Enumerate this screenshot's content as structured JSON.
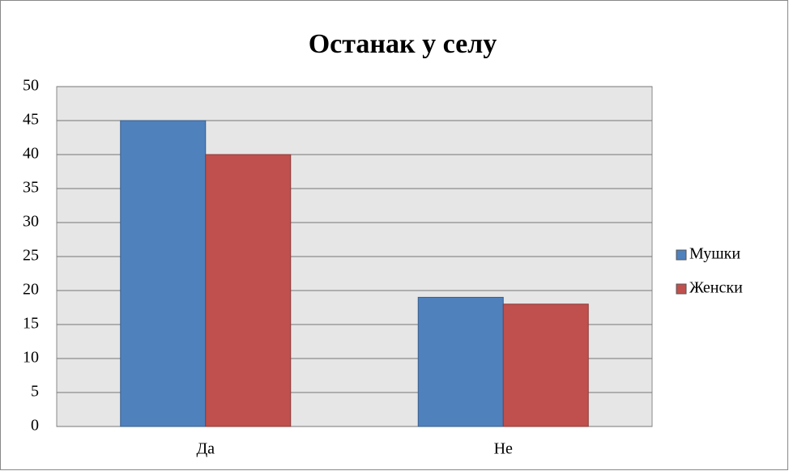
{
  "chart_data": {
    "type": "bar",
    "title": "Останак у селу",
    "categories": [
      "Да",
      "Не"
    ],
    "series": [
      {
        "name": "Мушки",
        "color": "#4f81bd",
        "values": [
          45,
          19
        ]
      },
      {
        "name": "Женски",
        "color": "#c0504d",
        "values": [
          40,
          18
        ]
      }
    ],
    "ylim": [
      0,
      50
    ],
    "yticks": [
      0,
      5,
      10,
      15,
      20,
      25,
      30,
      35,
      40,
      45,
      50
    ],
    "grid": true,
    "legend": "right"
  }
}
